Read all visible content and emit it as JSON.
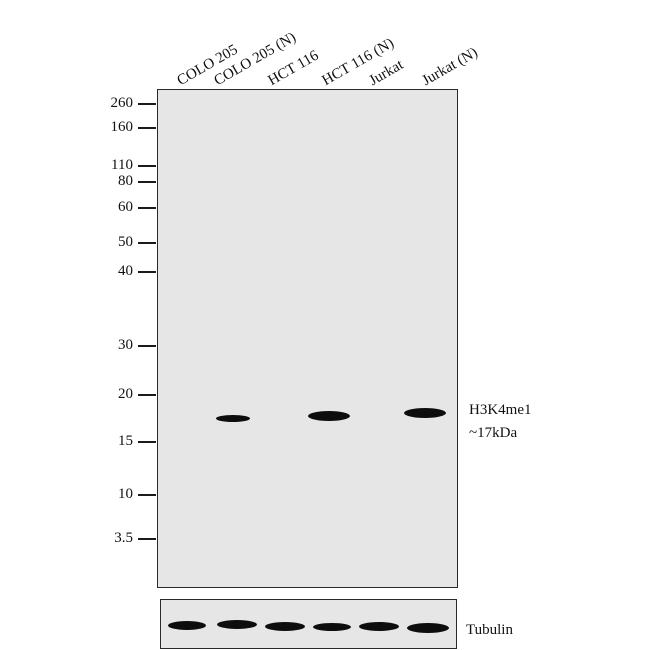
{
  "lanes": [
    {
      "label": "COLO 205"
    },
    {
      "label": "COLO 205 (N)"
    },
    {
      "label": "HCT 116"
    },
    {
      "label": "HCT 116 (N)"
    },
    {
      "label": "Jurkat"
    },
    {
      "label": "Jurkat (N)"
    }
  ],
  "markers": [
    {
      "label": "260"
    },
    {
      "label": "160"
    },
    {
      "label": "110"
    },
    {
      "label": "80"
    },
    {
      "label": "60"
    },
    {
      "label": "50"
    },
    {
      "label": "40"
    },
    {
      "label": "30"
    },
    {
      "label": "20"
    },
    {
      "label": "15"
    },
    {
      "label": "10"
    },
    {
      "label": "3.5"
    }
  ],
  "main_blot": {
    "target_name": "H3K4me1",
    "target_size": "~17kDa"
  },
  "loading_control": {
    "name": "Tubulin"
  }
}
